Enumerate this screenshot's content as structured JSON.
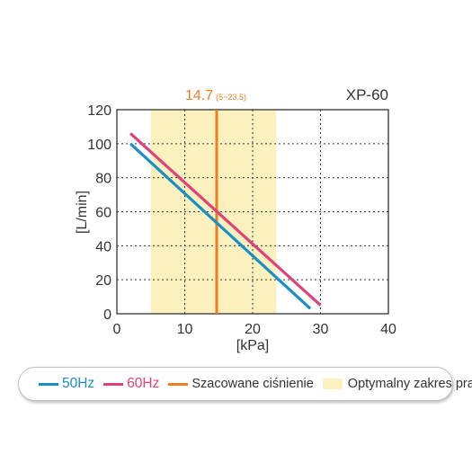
{
  "chart_data": {
    "type": "line",
    "title": "XP-60",
    "xlabel": "[kPa]",
    "ylabel": "[L/min]",
    "xlim": [
      0,
      40
    ],
    "ylim": [
      0,
      120
    ],
    "xticks": [
      0,
      10,
      20,
      30,
      40
    ],
    "yticks": [
      0,
      20,
      40,
      60,
      80,
      100,
      120
    ],
    "grid": "dotted",
    "series": [
      {
        "name": "50Hz",
        "color": "#1a8fc6",
        "x": [
          2,
          28.5
        ],
        "y": [
          100,
          3
        ]
      },
      {
        "name": "60Hz",
        "color": "#e0417a",
        "x": [
          2,
          30
        ],
        "y": [
          106,
          5
        ]
      }
    ],
    "reference_line": {
      "name": "Szacowane ciśnienie",
      "x": 14.7,
      "color": "#f07d1f"
    },
    "reference_band": {
      "name": "Optymalny zakres pracy",
      "x_range": [
        5,
        23.5
      ],
      "color": "#faf1bf"
    },
    "annotation": {
      "main": "14.7",
      "sub": "(5~23.5)",
      "color": "#f07d1f"
    }
  },
  "legend": [
    {
      "label": "50Hz",
      "kind": "line",
      "color": "#1a8fc6",
      "text_color": "#1a8fc6"
    },
    {
      "label": "60Hz",
      "kind": "line",
      "color": "#e0417a",
      "text_color": "#e0417a"
    },
    {
      "label": "Szacowane ciśnienie",
      "kind": "line",
      "color": "#f07d1f",
      "text_color": "#333333"
    },
    {
      "label": "Optymalny zakres pracy",
      "kind": "box",
      "color": "#faf1bf",
      "text_color": "#333333"
    }
  ]
}
